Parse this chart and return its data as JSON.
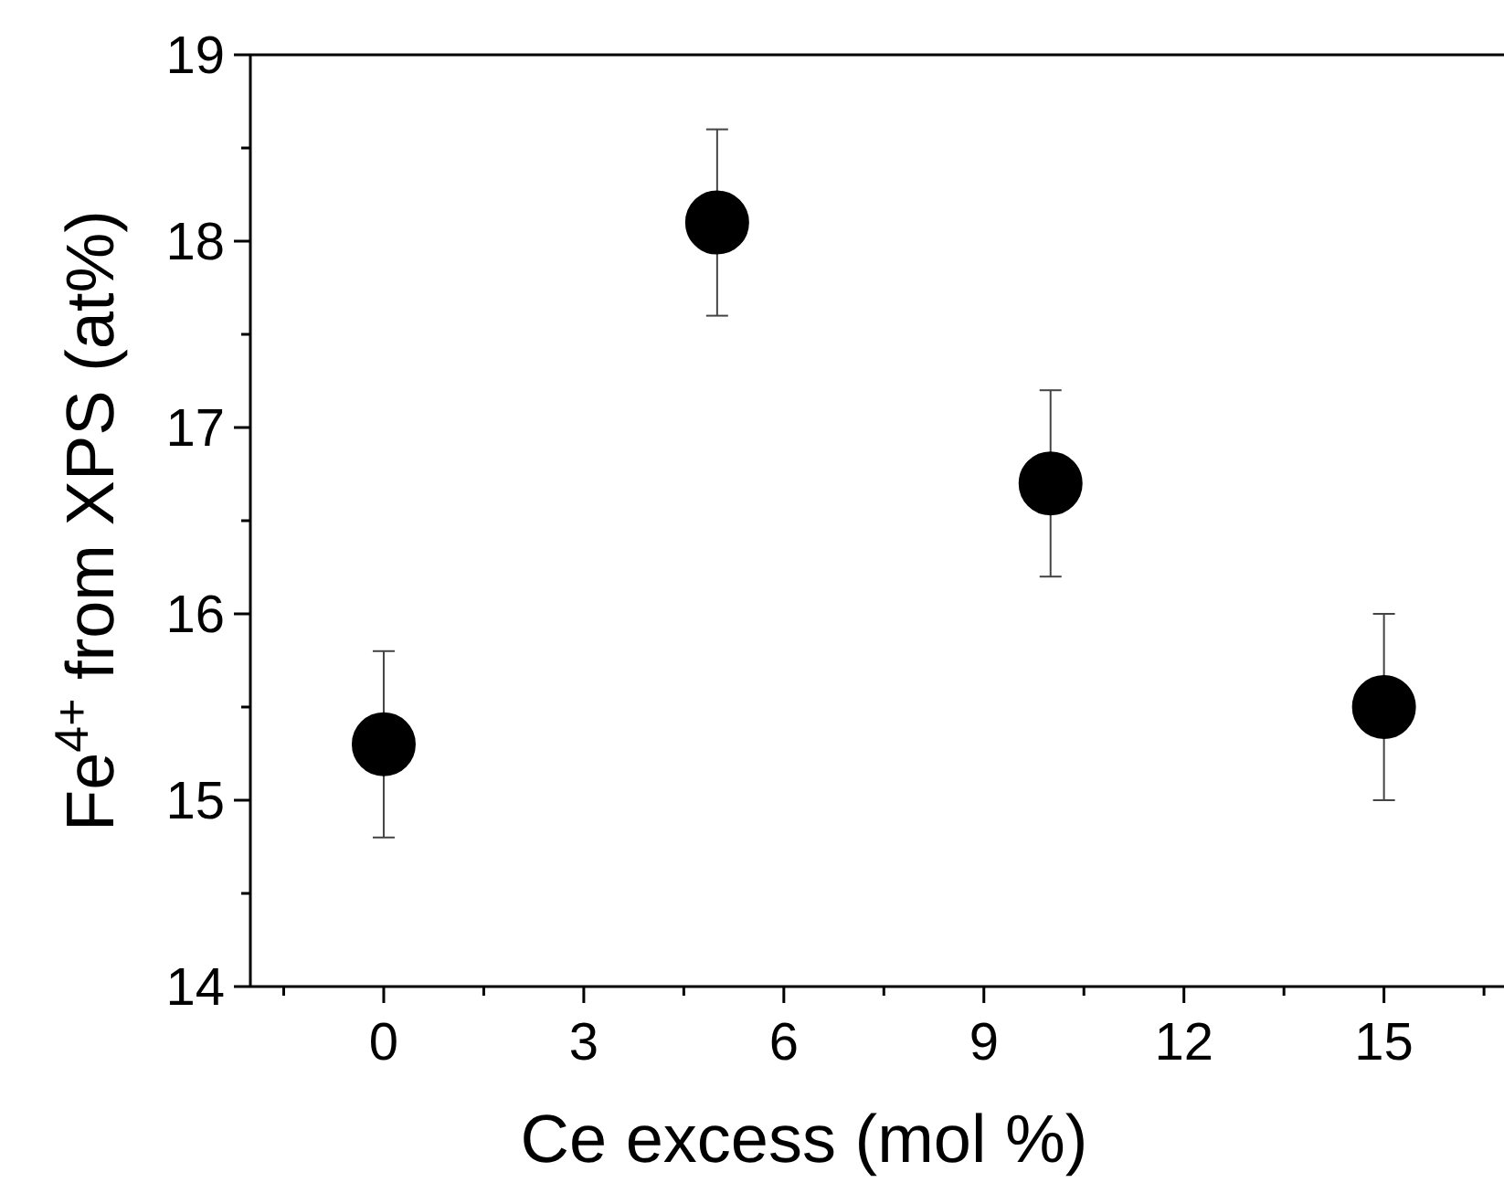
{
  "chart_data": {
    "type": "scatter",
    "xlabel": "Ce excess (mol %)",
    "ylabel": "Fe$^{4+}$ from XPS (at%)",
    "x": [
      0,
      5,
      10,
      15
    ],
    "series": [
      {
        "color": "#000000",
        "values": [
          15.3,
          18.1,
          16.7,
          15.5
        ],
        "errors": [
          0.5,
          0.5,
          0.5,
          0.5
        ]
      }
    ],
    "xlim": [
      -2,
      16.8
    ],
    "ylim": [
      14,
      19
    ],
    "xticks": [
      {
        "value": -1.5,
        "label": null
      },
      0,
      {
        "value": 1.5,
        "label": null
      },
      3,
      {
        "value": 4.5,
        "label": null
      },
      6,
      {
        "value": 7.5,
        "label": null
      },
      9,
      {
        "value": 10.5,
        "label": null
      },
      12,
      {
        "value": 13.5,
        "label": null
      },
      15,
      {
        "value": 16.5,
        "label": null
      }
    ],
    "yticks": [
      14,
      {
        "value": 14.5,
        "label": null
      },
      15,
      {
        "value": 15.5,
        "label": null
      },
      16,
      {
        "value": 16.5,
        "label": null
      },
      17,
      {
        "value": 17.5,
        "label": null
      },
      18,
      {
        "value": 18.5,
        "label": null
      },
      19
    ],
    "marker": "circle",
    "grid": false
  }
}
